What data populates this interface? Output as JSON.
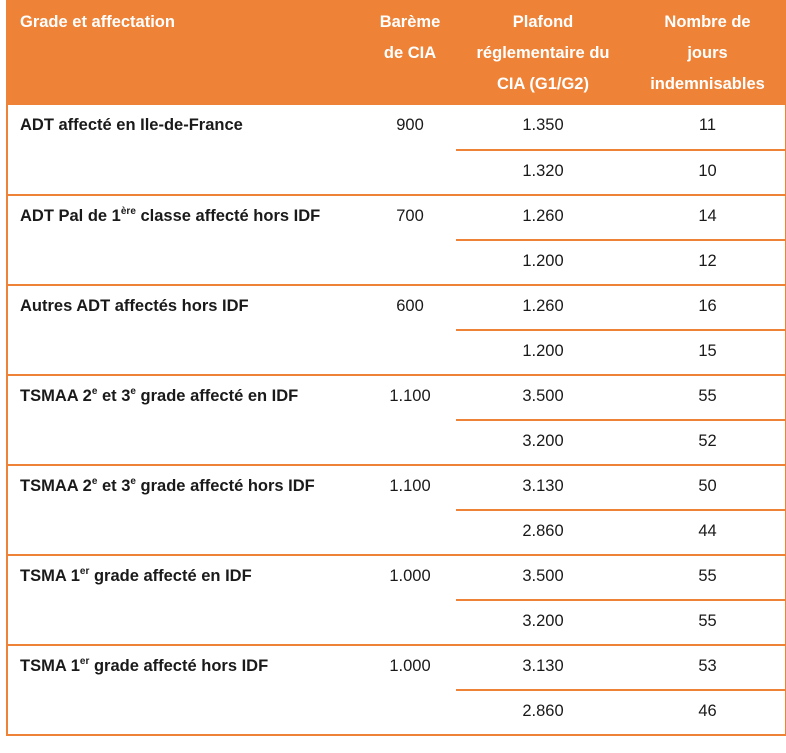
{
  "header": {
    "grade": "Grade et affectation",
    "bareme_l1": "Barème",
    "bareme_l2": "de CIA",
    "plafond_l1": "Plafond",
    "plafond_l2": "réglementaire du",
    "plafond_l3": "CIA (G1/G2)",
    "jours_l1": "Nombre de",
    "jours_l2": "jours",
    "jours_l3": "indemnisables"
  },
  "rows": [
    {
      "grade_a": "ADT affecté en Ile-de-France",
      "grade_sup1": "",
      "grade_b": "",
      "grade_sup2": "",
      "grade_c": "",
      "bareme": "900",
      "plafond_g1": "1.350",
      "jours_g1": "11",
      "plafond_g2": "1.320",
      "jours_g2": "10"
    },
    {
      "grade_a": "ADT Pal de 1",
      "grade_sup1": "ère",
      "grade_b": " classe affecté hors IDF",
      "grade_sup2": "",
      "grade_c": "",
      "bareme": "700",
      "plafond_g1": "1.260",
      "jours_g1": "14",
      "plafond_g2": "1.200",
      "jours_g2": "12"
    },
    {
      "grade_a": "Autres ADT affectés hors IDF",
      "grade_sup1": "",
      "grade_b": "",
      "grade_sup2": "",
      "grade_c": "",
      "bareme": "600",
      "plafond_g1": "1.260",
      "jours_g1": "16",
      "plafond_g2": "1.200",
      "jours_g2": "15"
    },
    {
      "grade_a": "TSMAA 2",
      "grade_sup1": "e",
      "grade_b": " et 3",
      "grade_sup2": "e",
      "grade_c": " grade affecté en IDF",
      "bareme": "1.100",
      "plafond_g1": "3.500",
      "jours_g1": "55",
      "plafond_g2": "3.200",
      "jours_g2": "52"
    },
    {
      "grade_a": "TSMAA 2",
      "grade_sup1": "e",
      "grade_b": " et 3",
      "grade_sup2": "e",
      "grade_c": " grade affecté hors IDF",
      "bareme": "1.100",
      "plafond_g1": "3.130",
      "jours_g1": "50",
      "plafond_g2": "2.860",
      "jours_g2": "44"
    },
    {
      "grade_a": "TSMA 1",
      "grade_sup1": "er",
      "grade_b": " grade affecté en IDF",
      "grade_sup2": "",
      "grade_c": "",
      "bareme": "1.000",
      "plafond_g1": "3.500",
      "jours_g1": "55",
      "plafond_g2": "3.200",
      "jours_g2": "55"
    },
    {
      "grade_a": "TSMA 1",
      "grade_sup1": "er",
      "grade_b": " grade affecté hors IDF",
      "grade_sup2": "",
      "grade_c": "",
      "bareme": "1.000",
      "plafond_g1": "3.130",
      "jours_g1": "53",
      "plafond_g2": "2.860",
      "jours_g2": "46"
    }
  ],
  "colors": {
    "accent": "#ee8237",
    "header_text": "#ffffff"
  }
}
